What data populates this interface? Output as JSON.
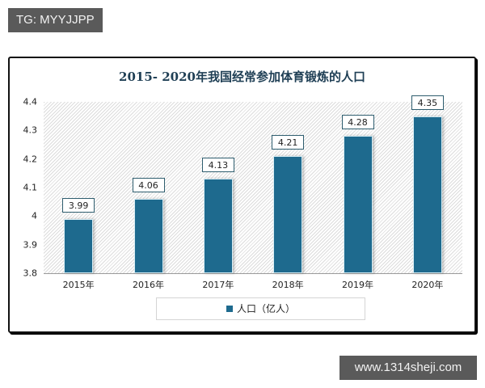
{
  "watermarks": {
    "top_left": "TG: MYYJJPP",
    "bottom_right": "www.1314sheji.com"
  },
  "chart_data": {
    "type": "bar",
    "title": "2015- 2020年我国经常参加体育锻炼的人口",
    "categories": [
      "2015年",
      "2016年",
      "2017年",
      "2018年",
      "2019年",
      "2020年"
    ],
    "series": [
      {
        "name": "人口（亿人）",
        "values": [
          3.99,
          4.06,
          4.13,
          4.21,
          4.28,
          4.35
        ],
        "color": "#1e6a8e"
      }
    ],
    "value_labels": [
      "3.99",
      "4.06",
      "4.13",
      "4.21",
      "4.28",
      "4.35"
    ],
    "xlabel": "",
    "ylabel": "",
    "ylim": [
      3.8,
      4.4
    ],
    "yticks": [
      "4.4",
      "4.3",
      "4.2",
      "4.1",
      "4",
      "3.9",
      "3.8"
    ],
    "grid": false,
    "legend_position": "bottom"
  }
}
